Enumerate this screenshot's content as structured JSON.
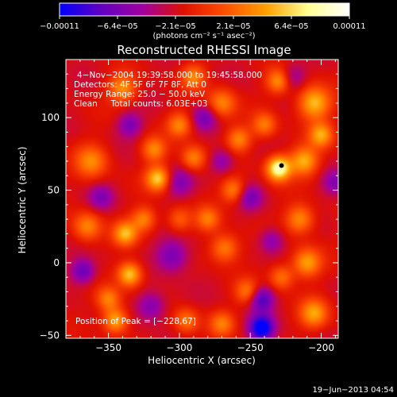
{
  "chart_data": {
    "type": "heatmap",
    "title": "Reconstructed RHESSI Image",
    "xlabel": "Heliocentric X (arcsec)",
    "ylabel": "Heliocentric Y (arcsec)",
    "xlim": [
      -380,
      -188
    ],
    "ylim": [
      -52,
      140
    ],
    "x_ticks": [
      -350,
      -300,
      -250,
      -200
    ],
    "x_tick_labels": [
      "−350",
      "−300",
      "−250",
      "−200"
    ],
    "y_ticks": [
      -50,
      0,
      50,
      100
    ],
    "y_tick_labels": [
      "−50",
      "0",
      "50",
      "100"
    ],
    "colorbar": {
      "min": -0.00011,
      "max": 0.00011,
      "tick_labels": [
        "−0.00011",
        "−6.4e−05",
        "−2.1e−05",
        "2.1e−05",
        "6.4e−05",
        "0.00011"
      ],
      "unit": "(photons cm⁻² s⁻¹ asec⁻²)",
      "colors": [
        "#0000ff",
        "#6000c0",
        "#a000a0",
        "#e01000",
        "#ff5000",
        "#ffa000",
        "#ffff90",
        "#ffffff"
      ]
    },
    "annotations": [
      "4−Nov−2004 19:39:58.000 to 19:45:58.000",
      "Detectors: 4F 5F 6F 7F 8F, Att 0",
      "Energy Range: 25.0 − 50.0 keV",
      "Clean     Total counts: 6.03E+03"
    ],
    "peak": {
      "label": "Position of Peak = [−228,67]",
      "x": -228,
      "y": 67
    },
    "blobs": [
      {
        "x": -230,
        "y": 65,
        "v": 1.0,
        "s": 6
      },
      {
        "x": -212,
        "y": 70,
        "v": 0.65,
        "s": 7
      },
      {
        "x": -205,
        "y": 110,
        "v": 0.7,
        "s": 8
      },
      {
        "x": -200,
        "y": 88,
        "v": 0.6,
        "s": 6
      },
      {
        "x": -215,
        "y": 30,
        "v": 0.55,
        "s": 7
      },
      {
        "x": -210,
        "y": 0,
        "v": 0.6,
        "s": 7
      },
      {
        "x": -228,
        "y": -10,
        "v": 0.45,
        "s": 6
      },
      {
        "x": -205,
        "y": -35,
        "v": 0.6,
        "s": 7
      },
      {
        "x": -230,
        "y": 125,
        "v": 0.55,
        "s": 6
      },
      {
        "x": -270,
        "y": 110,
        "v": 0.5,
        "s": 7
      },
      {
        "x": -258,
        "y": 85,
        "v": 0.5,
        "s": 6
      },
      {
        "x": -262,
        "y": 50,
        "v": 0.5,
        "s": 6
      },
      {
        "x": -268,
        "y": 10,
        "v": 0.5,
        "s": 7
      },
      {
        "x": -280,
        "y": 30,
        "v": 0.45,
        "s": 6
      },
      {
        "x": -252,
        "y": -20,
        "v": 0.45,
        "s": 6
      },
      {
        "x": -290,
        "y": 72,
        "v": 0.5,
        "s": 6
      },
      {
        "x": -300,
        "y": 95,
        "v": 0.5,
        "s": 6
      },
      {
        "x": -315,
        "y": 58,
        "v": 0.75,
        "s": 6
      },
      {
        "x": -318,
        "y": 78,
        "v": 0.5,
        "s": 6
      },
      {
        "x": -325,
        "y": 30,
        "v": 0.5,
        "s": 6
      },
      {
        "x": -338,
        "y": 20,
        "v": 0.65,
        "s": 6
      },
      {
        "x": -335,
        "y": -8,
        "v": 0.75,
        "s": 6
      },
      {
        "x": -350,
        "y": -25,
        "v": 0.5,
        "s": 6
      },
      {
        "x": -345,
        "y": -40,
        "v": 0.65,
        "s": 6
      },
      {
        "x": -365,
        "y": 25,
        "v": 0.5,
        "s": 7
      },
      {
        "x": -362,
        "y": 70,
        "v": 0.5,
        "s": 8
      },
      {
        "x": -340,
        "y": 120,
        "v": 0.55,
        "s": 7
      },
      {
        "x": -290,
        "y": 128,
        "v": 0.5,
        "s": 6
      },
      {
        "x": -295,
        "y": -40,
        "v": 0.45,
        "s": 6
      },
      {
        "x": -270,
        "y": -42,
        "v": 0.45,
        "s": 6
      },
      {
        "x": -240,
        "y": 95,
        "v": 0.45,
        "s": 6
      },
      {
        "x": -300,
        "y": 30,
        "v": 0.35,
        "s": 6
      },
      {
        "x": -242,
        "y": -45,
        "v": -0.95,
        "s": 6
      },
      {
        "x": -242,
        "y": -25,
        "v": -0.6,
        "s": 6
      },
      {
        "x": -368,
        "y": -6,
        "v": -0.5,
        "s": 6
      },
      {
        "x": -305,
        "y": 5,
        "v": -0.45,
        "s": 8
      },
      {
        "x": -300,
        "y": 55,
        "v": -0.35,
        "s": 7
      },
      {
        "x": -282,
        "y": 100,
        "v": -0.4,
        "s": 6
      },
      {
        "x": -250,
        "y": 45,
        "v": -0.4,
        "s": 6
      },
      {
        "x": -335,
        "y": 95,
        "v": -0.4,
        "s": 6
      },
      {
        "x": -235,
        "y": 15,
        "v": -0.35,
        "s": 6
      },
      {
        "x": -190,
        "y": 55,
        "v": -0.35,
        "s": 6
      },
      {
        "x": -270,
        "y": 70,
        "v": -0.35,
        "s": 6
      },
      {
        "x": -320,
        "y": -30,
        "v": -0.4,
        "s": 7
      },
      {
        "x": -355,
        "y": 45,
        "v": -0.35,
        "s": 6
      },
      {
        "x": -220,
        "y": 128,
        "v": -0.3,
        "s": 6
      }
    ]
  },
  "footer": {
    "date": "19−Jun−2013 04:54"
  }
}
